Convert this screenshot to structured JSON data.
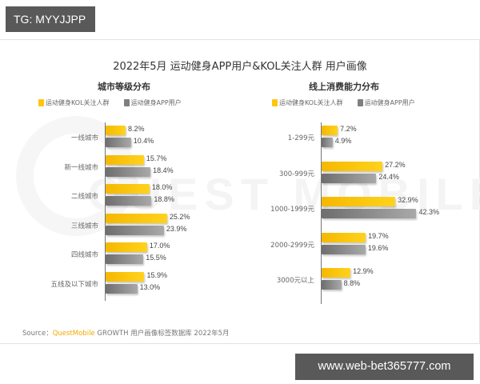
{
  "watermark_top": "TG: MYYJJPP",
  "watermark_bottom": "www.web-bet365777.com",
  "background_watermark": "QUEST MOBILE",
  "colors": {
    "kol": "#FFC510",
    "app": "#7F7F7F",
    "brand": "#F0A800"
  },
  "title": "2022年5月 运动健身APP用户&KOL关注人群 用户画像",
  "source": {
    "prefix": "Source：",
    "brand": "QuestMobile",
    "suffix": " GROWTH 用户画像标签数据库 2022年5月"
  },
  "chart_data": [
    {
      "type": "bar",
      "orientation": "horizontal",
      "title": "城市等级分布",
      "categories": [
        "一线城市",
        "新一线城市",
        "二线城市",
        "三线城市",
        "四线城市",
        "五线及以下城市"
      ],
      "series": [
        {
          "name": "运动健身KOL关注人群",
          "values": [
            8.2,
            15.7,
            18.0,
            25.2,
            17.0,
            15.9
          ],
          "labels": [
            "8.2%",
            "15.7%",
            "18.0%",
            "25.2%",
            "17.0%",
            "15.9%"
          ]
        },
        {
          "name": "运动健身APP用户",
          "values": [
            10.4,
            18.4,
            18.8,
            23.9,
            15.5,
            13.0
          ],
          "labels": [
            "10.4%",
            "18.4%",
            "18.8%",
            "23.9%",
            "15.5%",
            "13.0%"
          ]
        }
      ],
      "unit": "%",
      "legend_position": "top",
      "grid": false
    },
    {
      "type": "bar",
      "orientation": "horizontal",
      "title": "线上消费能力分布",
      "categories": [
        "1-299元",
        "300-999元",
        "1000-1999元",
        "2000-2999元",
        "3000元以上"
      ],
      "series": [
        {
          "name": "运动健身KOL关注人群",
          "values": [
            7.2,
            27.2,
            32.9,
            19.7,
            12.9
          ],
          "labels": [
            "7.2%",
            "27.2%",
            "32.9%",
            "19.7%",
            "12.9%"
          ]
        },
        {
          "name": "运动健身APP用户",
          "values": [
            4.9,
            24.4,
            42.3,
            19.6,
            8.8
          ],
          "labels": [
            "4.9%",
            "24.4%",
            "42.3%",
            "19.6%",
            "8.8%"
          ]
        }
      ],
      "unit": "%",
      "legend_position": "top",
      "grid": false
    }
  ]
}
